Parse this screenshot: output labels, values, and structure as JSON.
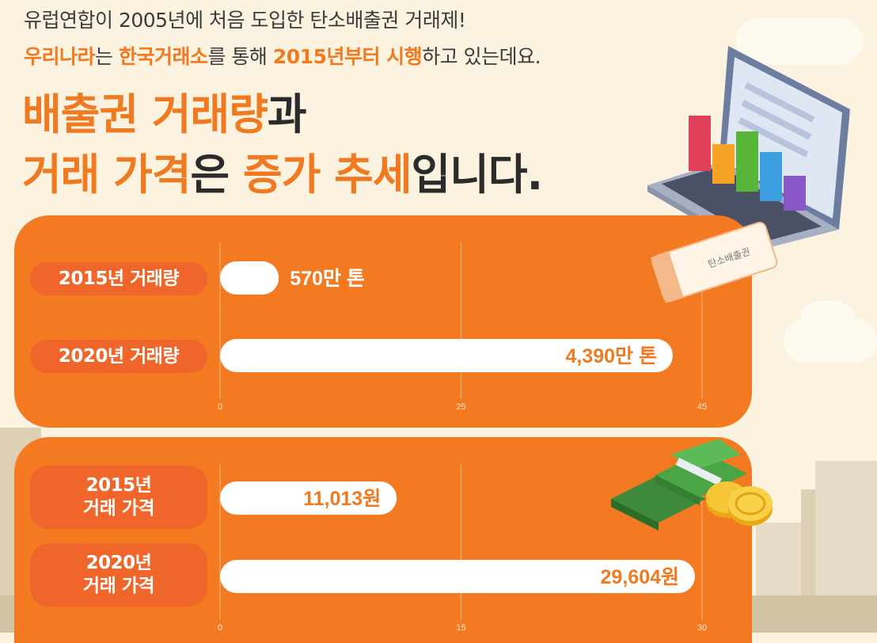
{
  "intro": {
    "line1": "유럽연합이 2005년에 처음 도입한 탄소배출권 거래제!",
    "line2": {
      "p1": "우리나라",
      "p2": "는 ",
      "p3": "한국거래소",
      "p4": "를 통해 ",
      "p5": "2015년부터 시행",
      "p6": "하고 있는데요."
    }
  },
  "headline": {
    "line1": {
      "a": "배출권 거래량",
      "b": "과"
    },
    "line2": {
      "a": "거래 가격",
      "b": "은 ",
      "c": "증가 추세",
      "d": "입니다."
    }
  },
  "decor": {
    "ticket_label": "탄소배출권"
  },
  "colors": {
    "panel": "#f47a22",
    "pill": "#f0652a",
    "bar": "#ffffff",
    "accent": "#f07a22"
  },
  "chart_data": [
    {
      "type": "bar",
      "orientation": "horizontal",
      "categories": [
        "2015년 거래량",
        "2020년 거래량"
      ],
      "values": [
        570,
        4390
      ],
      "value_labels": [
        "570만 톤",
        "4,390만 톤"
      ],
      "ticks": [
        "0",
        "25",
        "45"
      ],
      "unit": "만 톤"
    },
    {
      "type": "bar",
      "orientation": "horizontal",
      "categories": [
        "2015년 거래 가격",
        "2020년 거래 가격"
      ],
      "category_lines": [
        [
          "2015년",
          "거래 가격"
        ],
        [
          "2020년",
          "거래 가격"
        ]
      ],
      "values": [
        11013,
        29604
      ],
      "value_labels": [
        "11,013원",
        "29,604원"
      ],
      "ticks": [
        "0",
        "15",
        "30"
      ],
      "unit": "원"
    }
  ]
}
